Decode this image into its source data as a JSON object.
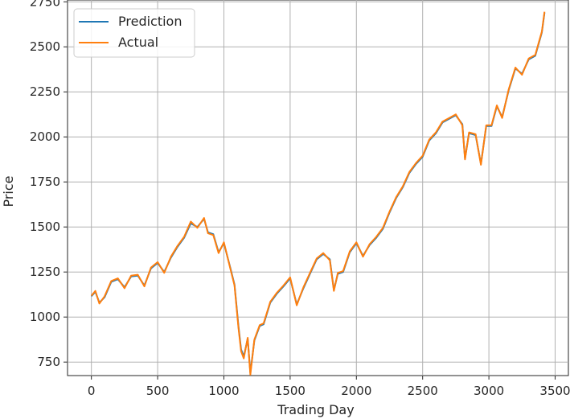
{
  "chart_data": {
    "type": "line",
    "title": "",
    "xlabel": "Trading Day",
    "ylabel": "Price",
    "xlim": [
      -180,
      3600
    ],
    "ylim": [
      675,
      2760
    ],
    "x_ticks": [
      0,
      500,
      1000,
      1500,
      2000,
      2500,
      3000,
      3500
    ],
    "y_ticks": [
      750,
      1000,
      1250,
      1500,
      1750,
      2000,
      2250,
      2500,
      2750
    ],
    "grid": true,
    "legend_position": "upper-left",
    "series": [
      {
        "name": "Prediction",
        "color": "#1f77b4",
        "x": [
          0,
          30,
          60,
          100,
          150,
          200,
          250,
          300,
          350,
          400,
          450,
          500,
          550,
          600,
          650,
          700,
          750,
          800,
          850,
          880,
          920,
          960,
          1000,
          1050,
          1080,
          1110,
          1130,
          1150,
          1180,
          1200,
          1230,
          1270,
          1300,
          1350,
          1400,
          1450,
          1500,
          1550,
          1600,
          1650,
          1700,
          1750,
          1800,
          1830,
          1860,
          1900,
          1950,
          2000,
          2050,
          2100,
          2150,
          2200,
          2250,
          2300,
          2350,
          2400,
          2450,
          2500,
          2550,
          2600,
          2650,
          2700,
          2750,
          2800,
          2820,
          2850,
          2900,
          2940,
          2980,
          3020,
          3060,
          3100,
          3150,
          3200,
          3250,
          3300,
          3350,
          3400,
          3420
        ],
        "values": [
          1115,
          1140,
          1080,
          1110,
          1195,
          1210,
          1165,
          1225,
          1230,
          1175,
          1270,
          1300,
          1250,
          1330,
          1390,
          1440,
          1520,
          1500,
          1545,
          1470,
          1460,
          1360,
          1410,
          1270,
          1180,
          950,
          820,
          780,
          880,
          690,
          870,
          950,
          960,
          1080,
          1130,
          1170,
          1215,
          1070,
          1160,
          1240,
          1320,
          1350,
          1320,
          1150,
          1240,
          1250,
          1360,
          1410,
          1340,
          1400,
          1440,
          1490,
          1580,
          1660,
          1720,
          1800,
          1850,
          1890,
          1980,
          2020,
          2080,
          2100,
          2120,
          2070,
          1880,
          2020,
          2010,
          1850,
          2060,
          2060,
          2170,
          2110,
          2260,
          2380,
          2350,
          2430,
          2450,
          2580,
          2690
        ]
      },
      {
        "name": "Actual",
        "color": "#ff7f0e",
        "x": [
          0,
          30,
          60,
          100,
          150,
          200,
          250,
          300,
          350,
          400,
          450,
          500,
          550,
          600,
          650,
          700,
          750,
          800,
          850,
          880,
          920,
          960,
          1000,
          1050,
          1080,
          1110,
          1130,
          1150,
          1180,
          1200,
          1230,
          1270,
          1300,
          1350,
          1400,
          1450,
          1500,
          1550,
          1600,
          1650,
          1700,
          1750,
          1800,
          1830,
          1860,
          1900,
          1950,
          2000,
          2050,
          2100,
          2150,
          2200,
          2250,
          2300,
          2350,
          2400,
          2450,
          2500,
          2550,
          2600,
          2650,
          2700,
          2750,
          2800,
          2820,
          2850,
          2900,
          2940,
          2980,
          3020,
          3060,
          3100,
          3150,
          3200,
          3250,
          3300,
          3350,
          3400,
          3420
        ],
        "values": [
          1118,
          1145,
          1075,
          1115,
          1200,
          1215,
          1160,
          1230,
          1235,
          1170,
          1275,
          1305,
          1245,
          1335,
          1395,
          1445,
          1530,
          1495,
          1550,
          1465,
          1455,
          1355,
          1415,
          1265,
          1175,
          940,
          810,
          770,
          885,
          680,
          875,
          955,
          965,
          1085,
          1135,
          1175,
          1220,
          1065,
          1165,
          1245,
          1325,
          1355,
          1315,
          1145,
          1245,
          1255,
          1365,
          1415,
          1335,
          1405,
          1445,
          1495,
          1585,
          1665,
          1725,
          1805,
          1855,
          1895,
          1985,
          2025,
          2085,
          2105,
          2125,
          2065,
          1875,
          2025,
          2015,
          1845,
          2065,
          2065,
          2175,
          2105,
          2265,
          2385,
          2345,
          2435,
          2455,
          2585,
          2695
        ]
      }
    ]
  }
}
